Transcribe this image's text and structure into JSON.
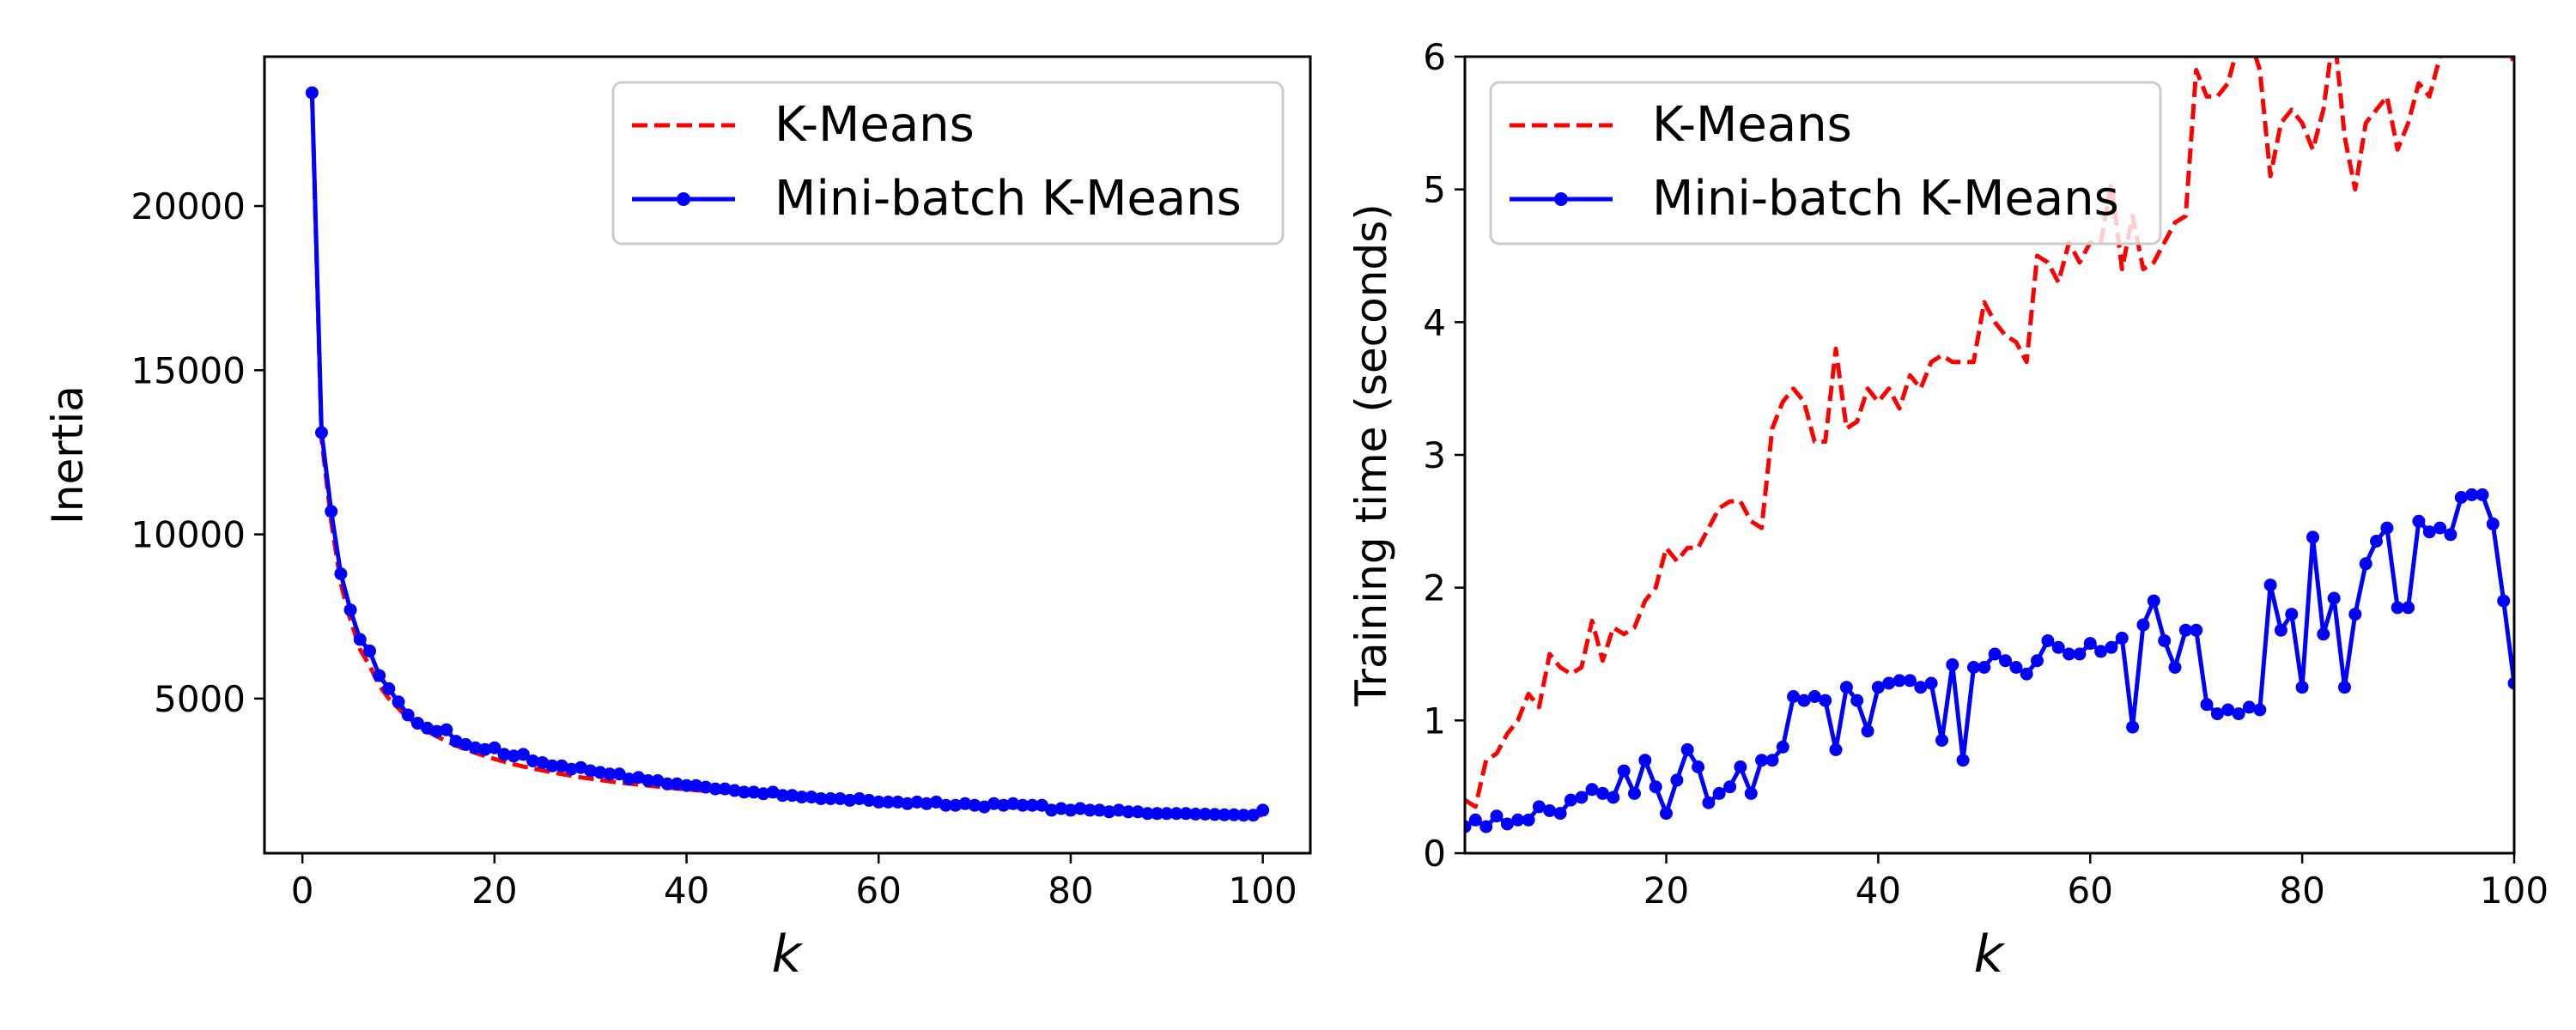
{
  "chart_data": [
    {
      "type": "line",
      "title": "",
      "xlabel": "k",
      "ylabel": "Inertia",
      "xlim": [
        -3.95,
        104.95
      ],
      "ylim": [
        291,
        24550
      ],
      "xticks": [
        0,
        20,
        40,
        60,
        80,
        100
      ],
      "yticks": [
        5000,
        10000,
        15000,
        20000
      ],
      "grid": false,
      "legend_position": "top-right",
      "series": [
        {
          "name": "K-Means",
          "style": "dashed",
          "color": "#ff0000",
          "x": [
            1,
            2,
            3,
            4,
            5,
            6,
            7,
            8,
            9,
            10,
            11,
            12,
            13,
            14,
            15,
            16,
            17,
            18,
            19,
            20,
            21,
            22,
            23,
            24,
            25,
            26,
            27,
            28,
            29,
            30,
            31,
            32,
            33,
            34,
            35,
            36,
            37,
            38,
            39,
            40,
            41,
            42,
            43,
            44,
            45,
            46,
            47,
            48,
            49,
            50,
            51,
            52,
            53,
            54,
            55,
            56,
            57,
            58,
            59,
            60,
            61,
            62,
            63,
            64,
            65,
            66,
            67,
            68,
            69,
            70,
            71,
            72,
            73,
            74,
            75,
            76,
            77,
            78,
            79,
            80,
            81,
            82,
            83,
            84,
            85,
            86,
            87,
            88,
            89,
            90,
            91,
            92,
            93,
            94,
            95,
            96,
            97,
            98,
            99,
            100
          ],
          "y": [
            23400,
            12900,
            10400,
            8500,
            7400,
            6500,
            6000,
            5400,
            5000,
            4700,
            4400,
            4200,
            4000,
            3850,
            3700,
            3570,
            3450,
            3350,
            3250,
            3160,
            3080,
            3000,
            2930,
            2870,
            2810,
            2750,
            2700,
            2650,
            2600,
            2560,
            2520,
            2480,
            2440,
            2410,
            2380,
            2350,
            2320,
            2290,
            2260,
            2240,
            2210,
            2190,
            2170,
            2150,
            2120,
            2100,
            2080,
            2060,
            2040,
            2020,
            2000,
            1990,
            1970,
            1950,
            1940,
            1920,
            1900,
            1890,
            1870,
            1860,
            1850,
            1830,
            1820,
            1810,
            1790,
            1780,
            1770,
            1760,
            1740,
            1730,
            1720,
            1710,
            1700,
            1690,
            1680,
            1670,
            1660,
            1650,
            1640,
            1630,
            1620,
            1610,
            1600,
            1590,
            1580,
            1570,
            1560,
            1550,
            1540,
            1530,
            1520,
            1510,
            1505,
            1495,
            1485,
            1475,
            1465,
            1455,
            1450,
            1440
          ]
        },
        {
          "name": "Mini-batch K-Means",
          "style": "solid-dot",
          "color": "#0000ff",
          "x": [
            1,
            2,
            3,
            4,
            5,
            6,
            7,
            8,
            9,
            10,
            11,
            12,
            13,
            14,
            15,
            16,
            17,
            18,
            19,
            20,
            21,
            22,
            23,
            24,
            25,
            26,
            27,
            28,
            29,
            30,
            31,
            32,
            33,
            34,
            35,
            36,
            37,
            38,
            39,
            40,
            41,
            42,
            43,
            44,
            45,
            46,
            47,
            48,
            49,
            50,
            51,
            52,
            53,
            54,
            55,
            56,
            57,
            58,
            59,
            60,
            61,
            62,
            63,
            64,
            65,
            66,
            67,
            68,
            69,
            70,
            71,
            72,
            73,
            74,
            75,
            76,
            77,
            78,
            79,
            80,
            81,
            82,
            83,
            84,
            85,
            86,
            87,
            88,
            89,
            90,
            91,
            92,
            93,
            94,
            95,
            96,
            97,
            98,
            99,
            100
          ],
          "y": [
            23450,
            13100,
            10700,
            8800,
            7700,
            6800,
            6450,
            5700,
            5300,
            4900,
            4500,
            4250,
            4100,
            4000,
            4050,
            3700,
            3600,
            3500,
            3450,
            3500,
            3300,
            3250,
            3300,
            3100,
            3050,
            2950,
            2950,
            2850,
            2900,
            2800,
            2750,
            2700,
            2700,
            2550,
            2600,
            2500,
            2500,
            2400,
            2400,
            2350,
            2350,
            2300,
            2250,
            2250,
            2200,
            2150,
            2150,
            2100,
            2150,
            2050,
            2050,
            2000,
            2000,
            1950,
            1950,
            1950,
            1900,
            1950,
            1900,
            1850,
            1850,
            1850,
            1800,
            1850,
            1800,
            1850,
            1750,
            1750,
            1800,
            1750,
            1700,
            1800,
            1750,
            1800,
            1750,
            1750,
            1750,
            1600,
            1650,
            1600,
            1650,
            1600,
            1600,
            1550,
            1600,
            1550,
            1550,
            1500,
            1500,
            1500,
            1500,
            1500,
            1480,
            1480,
            1470,
            1460,
            1460,
            1450,
            1450,
            1600
          ]
        }
      ]
    },
    {
      "type": "line",
      "title": "",
      "xlabel": "k",
      "ylabel": "Training time (seconds)",
      "xlim": [
        1,
        100
      ],
      "ylim": [
        0,
        6
      ],
      "xticks": [
        20,
        40,
        60,
        80,
        100
      ],
      "yticks": [
        0,
        1,
        2,
        3,
        4,
        5,
        6
      ],
      "grid": false,
      "legend_position": "top-left",
      "series": [
        {
          "name": "K-Means",
          "style": "dashed",
          "color": "#ff0000",
          "x": [
            1,
            2,
            3,
            4,
            5,
            6,
            7,
            8,
            9,
            10,
            11,
            12,
            13,
            14,
            15,
            16,
            17,
            18,
            19,
            20,
            21,
            22,
            23,
            24,
            25,
            26,
            27,
            28,
            29,
            30,
            31,
            32,
            33,
            34,
            35,
            36,
            37,
            38,
            39,
            40,
            41,
            42,
            43,
            44,
            45,
            46,
            47,
            48,
            49,
            50,
            51,
            52,
            53,
            54,
            55,
            56,
            57,
            58,
            59,
            60,
            61,
            62,
            63,
            64,
            65,
            66,
            67,
            68,
            69,
            70,
            71,
            72,
            73,
            74,
            75,
            76,
            77,
            78,
            79,
            80,
            81,
            82,
            83,
            84,
            85,
            86,
            87,
            88,
            89,
            90,
            91,
            92,
            93,
            94,
            95,
            96,
            97,
            98,
            99,
            100
          ],
          "y": [
            0.4,
            0.35,
            0.7,
            0.75,
            0.9,
            1.0,
            1.2,
            1.1,
            1.5,
            1.4,
            1.35,
            1.4,
            1.75,
            1.45,
            1.7,
            1.65,
            1.7,
            1.9,
            2.0,
            2.3,
            2.2,
            2.3,
            2.3,
            2.45,
            2.6,
            2.65,
            2.65,
            2.5,
            2.45,
            3.2,
            3.4,
            3.5,
            3.4,
            3.1,
            3.1,
            3.8,
            3.2,
            3.25,
            3.5,
            3.4,
            3.5,
            3.35,
            3.6,
            3.5,
            3.7,
            3.75,
            3.7,
            3.7,
            3.7,
            4.15,
            4.0,
            3.9,
            3.85,
            3.7,
            4.5,
            4.45,
            4.3,
            4.6,
            4.45,
            4.6,
            4.6,
            5.05,
            4.4,
            4.8,
            4.4,
            4.45,
            4.6,
            4.75,
            4.8,
            5.9,
            5.7,
            5.7,
            5.8,
            6.1,
            6.15,
            5.9,
            5.1,
            5.5,
            5.6,
            5.5,
            5.3,
            5.6,
            6.2,
            5.4,
            5.0,
            5.5,
            5.6,
            5.7,
            5.3,
            5.5,
            5.8,
            5.7,
            6.0,
            6.05,
            6.2,
            6.3,
            6.25,
            6.1,
            6.15,
            5.95
          ]
        },
        {
          "name": "Mini-batch K-Means",
          "style": "solid-dot",
          "color": "#0000ff",
          "x": [
            1,
            2,
            3,
            4,
            5,
            6,
            7,
            8,
            9,
            10,
            11,
            12,
            13,
            14,
            15,
            16,
            17,
            18,
            19,
            20,
            21,
            22,
            23,
            24,
            25,
            26,
            27,
            28,
            29,
            30,
            31,
            32,
            33,
            34,
            35,
            36,
            37,
            38,
            39,
            40,
            41,
            42,
            43,
            44,
            45,
            46,
            47,
            48,
            49,
            50,
            51,
            52,
            53,
            54,
            55,
            56,
            57,
            58,
            59,
            60,
            61,
            62,
            63,
            64,
            65,
            66,
            67,
            68,
            69,
            70,
            71,
            72,
            73,
            74,
            75,
            76,
            77,
            78,
            79,
            80,
            81,
            82,
            83,
            84,
            85,
            86,
            87,
            88,
            89,
            90,
            91,
            92,
            93,
            94,
            95,
            96,
            97,
            98,
            99,
            100
          ],
          "y": [
            0.2,
            0.25,
            0.2,
            0.28,
            0.22,
            0.25,
            0.25,
            0.35,
            0.32,
            0.3,
            0.4,
            0.42,
            0.48,
            0.45,
            0.42,
            0.62,
            0.45,
            0.7,
            0.5,
            0.3,
            0.55,
            0.78,
            0.65,
            0.38,
            0.45,
            0.5,
            0.65,
            0.45,
            0.7,
            0.7,
            0.8,
            1.18,
            1.15,
            1.18,
            1.15,
            0.78,
            1.25,
            1.15,
            0.92,
            1.25,
            1.28,
            1.3,
            1.3,
            1.25,
            1.28,
            0.85,
            1.42,
            0.7,
            1.4,
            1.4,
            1.5,
            1.45,
            1.4,
            1.35,
            1.45,
            1.6,
            1.55,
            1.5,
            1.5,
            1.58,
            1.52,
            1.55,
            1.62,
            0.95,
            1.72,
            1.9,
            1.6,
            1.4,
            1.68,
            1.68,
            1.12,
            1.05,
            1.08,
            1.05,
            1.1,
            1.08,
            2.02,
            1.68,
            1.8,
            1.25,
            2.38,
            1.65,
            1.92,
            1.25,
            1.8,
            2.18,
            2.35,
            2.45,
            1.85,
            1.85,
            2.5,
            2.42,
            2.45,
            2.4,
            2.68,
            2.7,
            2.7,
            2.48,
            1.9,
            1.28
          ]
        }
      ]
    }
  ]
}
